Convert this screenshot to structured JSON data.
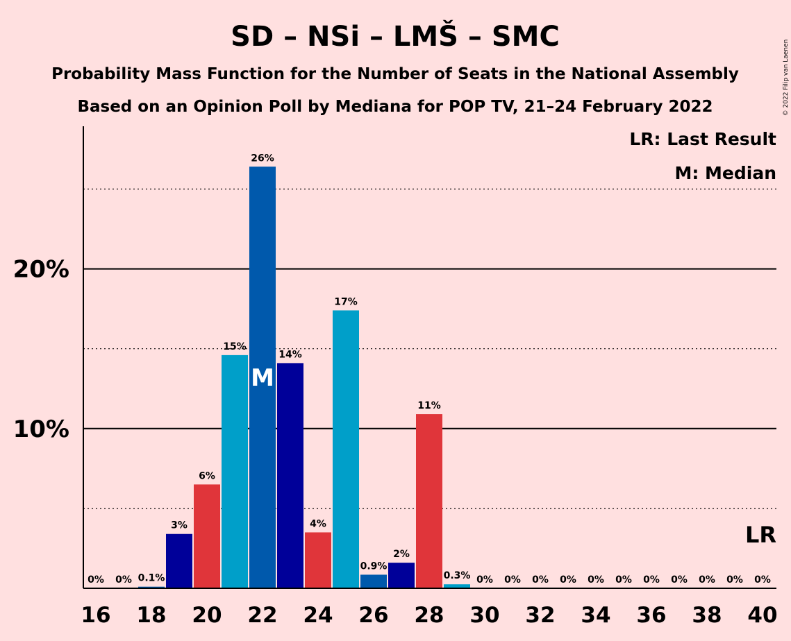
{
  "chart_data": {
    "type": "bar",
    "title": "SD – NSi – LMŠ – SMC",
    "subtitle1": "Probability Mass Function for the Number of Seats in the National Assembly",
    "subtitle2": "Based on an Opinion Poll by Mediana for POP TV, 21–24 February 2022",
    "copyright": "© 2022 Filip van Laenen",
    "legend": {
      "last_result": "LR: Last Result",
      "median": "M: Median",
      "placement": "top-right"
    },
    "x": [
      16,
      17,
      18,
      19,
      20,
      21,
      22,
      23,
      24,
      25,
      26,
      27,
      28,
      29,
      30,
      31,
      32,
      33,
      34,
      35,
      36,
      37,
      38,
      39,
      40
    ],
    "values": [
      0,
      0,
      0.1,
      3.4,
      6.5,
      14.6,
      26.4,
      14.1,
      3.5,
      17.4,
      0.85,
      1.6,
      10.9,
      0.25,
      0,
      0,
      0,
      0,
      0,
      0,
      0,
      0,
      0,
      0,
      0
    ],
    "value_labels": [
      "0%",
      "0%",
      "0.1%",
      "3%",
      "6%",
      "15%",
      "26%",
      "14%",
      "4%",
      "17%",
      "0.9%",
      "2%",
      "11%",
      "0.3%",
      "0%",
      "0%",
      "0%",
      "0%",
      "0%",
      "0%",
      "0%",
      "0%",
      "0%",
      "0%",
      "0%"
    ],
    "bar_colors": [
      "#E0353A",
      "#009FC9",
      "#0059AC",
      "#000099",
      "#E0353A",
      "#009FC9",
      "#0059AC",
      "#000099",
      "#E0353A",
      "#009FC9",
      "#0059AC",
      "#000099",
      "#E0353A",
      "#009FC9",
      "#0059AC",
      "#000099",
      "#E0353A",
      "#009FC9",
      "#0059AC",
      "#000099",
      "#E0353A",
      "#009FC9",
      "#0059AC",
      "#000099",
      "#E0353A"
    ],
    "x_ticks": [
      16,
      18,
      20,
      22,
      24,
      26,
      28,
      30,
      32,
      34,
      36,
      38,
      40
    ],
    "x_tick_labels": [
      "16",
      "18",
      "20",
      "22",
      "24",
      "26",
      "28",
      "30",
      "32",
      "34",
      "36",
      "38",
      "40"
    ],
    "y_ticks": [
      10,
      20
    ],
    "y_tick_labels": [
      "10%",
      "20%"
    ],
    "y_minor_ticks": [
      5,
      15,
      25
    ],
    "ylim": [
      0,
      28.8
    ],
    "median_seat": 22,
    "median_marker": "M",
    "last_result_seat": 40,
    "last_result_marker": "LR",
    "background": "#FFE0E0"
  }
}
